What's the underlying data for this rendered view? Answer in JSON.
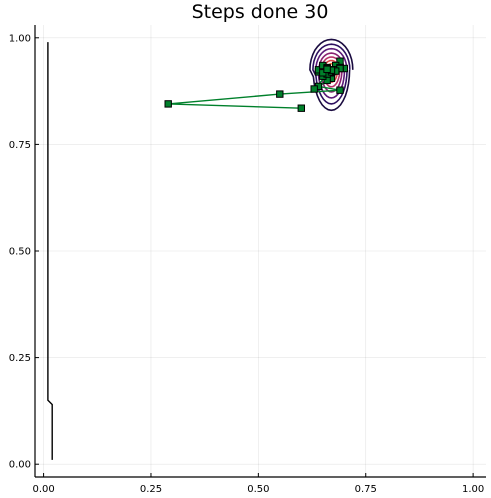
{
  "chart_data": {
    "type": "line",
    "title": "Steps done 30",
    "xlabel": "",
    "ylabel": "",
    "xlim": [
      -0.02,
      1.03
    ],
    "ylim": [
      -0.03,
      1.03
    ],
    "xticks": [
      0.0,
      0.25,
      0.5,
      0.75,
      1.0
    ],
    "xtick_labels": [
      "0.00",
      "0.25",
      "0.50",
      "0.75",
      "1.00"
    ],
    "yticks": [
      0.0,
      0.25,
      0.5,
      0.75,
      1.0
    ],
    "ytick_labels": [
      "0.00",
      "0.25",
      "0.50",
      "0.75",
      "1.00"
    ],
    "grid": true,
    "legend": "none",
    "vertical_curve": {
      "color": "#000000",
      "points": [
        [
          0.01,
          0.99
        ],
        [
          0.01,
          0.15
        ],
        [
          0.02,
          0.14
        ],
        [
          0.02,
          0.01
        ]
      ]
    },
    "contours": {
      "center": [
        0.67,
        0.925
      ],
      "levels": [
        {
          "rx": 0.05,
          "ry": 0.095,
          "color": "#1a0b40"
        },
        {
          "rx": 0.043,
          "ry": 0.08,
          "color": "#2d0f5f"
        },
        {
          "rx": 0.036,
          "ry": 0.066,
          "color": "#5c1a78"
        },
        {
          "rx": 0.029,
          "ry": 0.052,
          "color": "#8a2272"
        },
        {
          "rx": 0.023,
          "ry": 0.04,
          "color": "#b8336a"
        },
        {
          "rx": 0.017,
          "ry": 0.029,
          "color": "#dc4b4b"
        },
        {
          "rx": 0.011,
          "ry": 0.019,
          "color": "#f07a3a"
        },
        {
          "rx": 0.006,
          "ry": 0.01,
          "color": "#f8b32c"
        }
      ]
    },
    "series": [
      {
        "color": "#00802b",
        "marker": "square",
        "x": [
          0.6,
          0.29,
          0.55,
          0.69,
          0.64,
          0.67,
          0.63,
          0.69,
          0.66,
          0.7,
          0.64,
          0.68,
          0.65,
          0.69,
          0.66,
          0.68,
          0.65,
          0.67,
          0.64,
          0.66,
          0.69,
          0.65,
          0.67,
          0.66,
          0.68,
          0.65,
          0.67,
          0.66,
          0.67,
          0.66
        ],
        "y": [
          0.835,
          0.845,
          0.868,
          0.877,
          0.886,
          0.905,
          0.88,
          0.945,
          0.9,
          0.928,
          0.92,
          0.935,
          0.91,
          0.93,
          0.922,
          0.925,
          0.93,
          0.918,
          0.925,
          0.915,
          0.928,
          0.935,
          0.92,
          0.93,
          0.922,
          0.918,
          0.925,
          0.928,
          0.924,
          0.926
        ]
      }
    ],
    "colors": {
      "axis": "#000000",
      "background": "#ffffff",
      "path": "#00802b",
      "marker_edge": "#000000"
    }
  }
}
